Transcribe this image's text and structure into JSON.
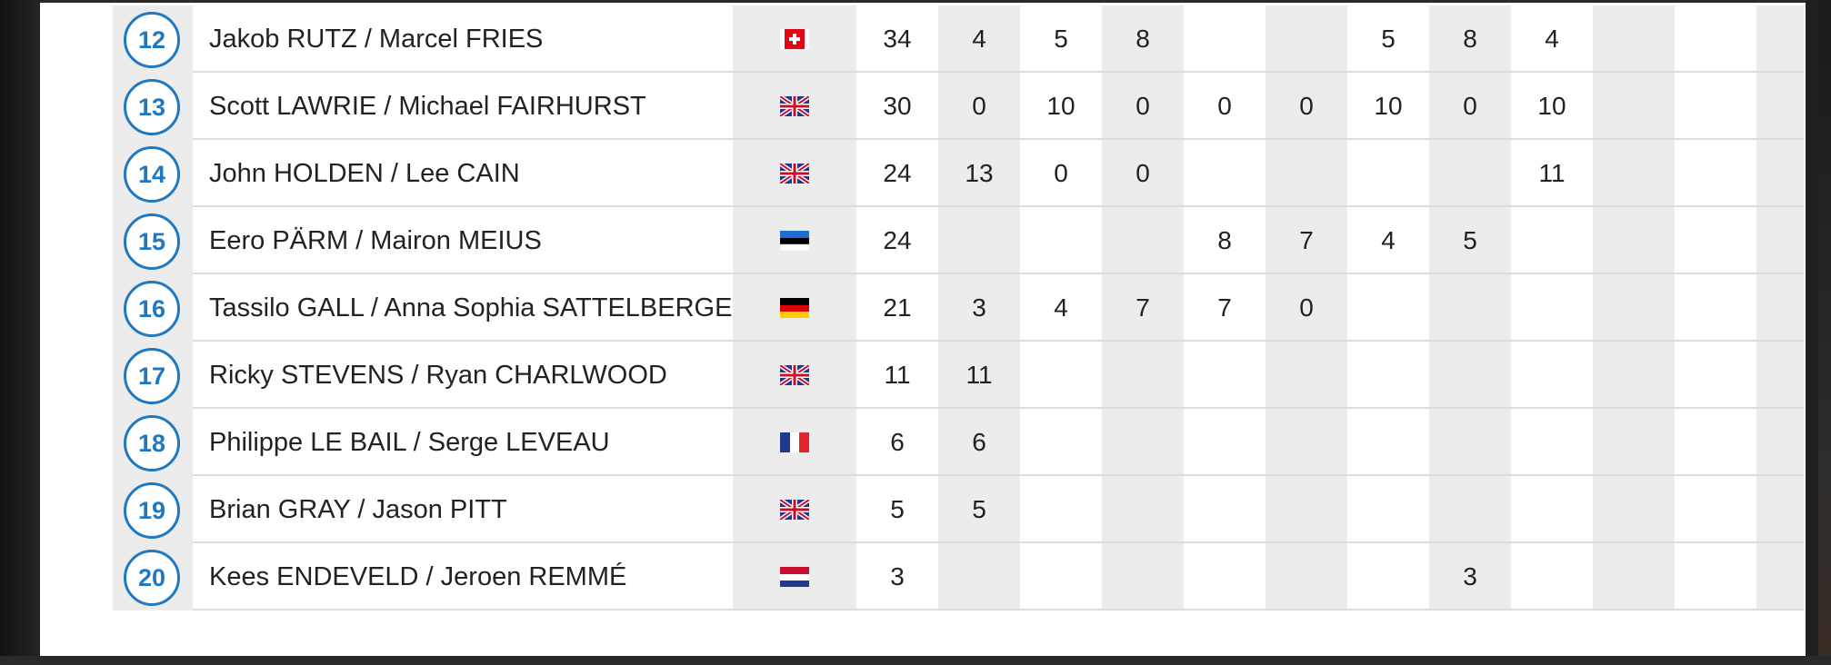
{
  "table": {
    "rows": [
      {
        "rank": "12",
        "crew": "Jakob RUTZ / Marcel FRIES",
        "flag": "switzerland-flag-icon",
        "total": "34",
        "rounds": [
          "4",
          "5",
          "8",
          "",
          "",
          "5",
          "8",
          "4",
          "",
          "",
          ""
        ]
      },
      {
        "rank": "13",
        "crew": "Scott LAWRIE / Michael FAIRHURST",
        "flag": "uk-flag-icon",
        "total": "30",
        "rounds": [
          "0",
          "10",
          "0",
          "0",
          "0",
          "10",
          "0",
          "10",
          "",
          "",
          ""
        ]
      },
      {
        "rank": "14",
        "crew": "John HOLDEN / Lee CAIN",
        "flag": "uk-flag-icon",
        "total": "24",
        "rounds": [
          "13",
          "0",
          "0",
          "",
          "",
          "",
          "",
          "11",
          "",
          "",
          ""
        ]
      },
      {
        "rank": "15",
        "crew": "Eero PÄRM / Mairon MEIUS",
        "flag": "estonia-flag-icon",
        "total": "24",
        "rounds": [
          "",
          "",
          "",
          "8",
          "7",
          "4",
          "5",
          "",
          "",
          "",
          ""
        ]
      },
      {
        "rank": "16",
        "crew": "Tassilo GALL / Anna Sophia SATTELBERGER",
        "flag": "germany-flag-icon",
        "total": "21",
        "rounds": [
          "3",
          "4",
          "7",
          "7",
          "0",
          "",
          "",
          "",
          "",
          "",
          ""
        ]
      },
      {
        "rank": "17",
        "crew": "Ricky STEVENS / Ryan CHARLWOOD",
        "flag": "uk-flag-icon",
        "total": "11",
        "rounds": [
          "11",
          "",
          "",
          "",
          "",
          "",
          "",
          "",
          "",
          "",
          ""
        ]
      },
      {
        "rank": "18",
        "crew": "Philippe LE BAIL / Serge LEVEAU",
        "flag": "france-flag-icon",
        "total": "6",
        "rounds": [
          "6",
          "",
          "",
          "",
          "",
          "",
          "",
          "",
          "",
          "",
          ""
        ]
      },
      {
        "rank": "19",
        "crew": "Brian GRAY / Jason PITT",
        "flag": "uk-flag-icon",
        "total": "5",
        "rounds": [
          "5",
          "",
          "",
          "",
          "",
          "",
          "",
          "",
          "",
          "",
          ""
        ]
      },
      {
        "rank": "20",
        "crew": "Kees ENDEVELD / Jeroen REMMÉ",
        "flag": "netherlands-flag-icon",
        "total": "3",
        "rounds": [
          "",
          "",
          "",
          "",
          "",
          "",
          "3",
          "",
          "",
          "",
          ""
        ]
      }
    ]
  }
}
